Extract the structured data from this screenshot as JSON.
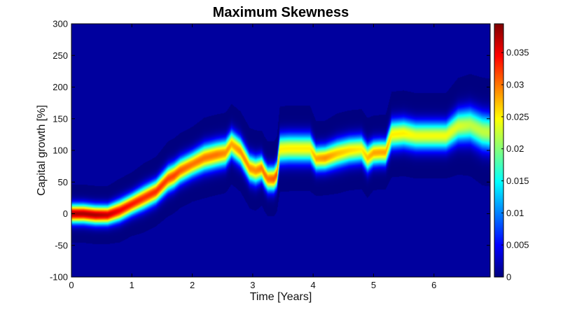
{
  "chart_data": {
    "type": "heatmap",
    "title": "Maximum Skewness",
    "xlabel": "Time [Years]",
    "ylabel": "Capital growth [%]",
    "xlim": [
      0,
      6.93
    ],
    "ylim": [
      -100,
      300
    ],
    "x_ticks": [
      0,
      1,
      2,
      3,
      4,
      5,
      6
    ],
    "y_ticks": [
      -100,
      -50,
      0,
      50,
      100,
      150,
      200,
      250,
      300
    ],
    "grid": false,
    "colormap": "jet",
    "colorbar": {
      "range": [
        0,
        0.0395
      ],
      "ticks": [
        0,
        0.005,
        0.01,
        0.015,
        0.02,
        0.025,
        0.03,
        0.035
      ],
      "tick_labels": [
        "0",
        "0.005",
        "0.01",
        "0.015",
        "0.02",
        "0.025",
        "0.03",
        "0.035"
      ]
    },
    "ridge": {
      "description": "density peak path (center of distribution) over time",
      "time": [
        0,
        0.2,
        0.4,
        0.6,
        0.8,
        1.0,
        1.2,
        1.4,
        1.6,
        1.7,
        1.8,
        2.0,
        2.2,
        2.4,
        2.55,
        2.65,
        2.8,
        2.95,
        3.05,
        3.15,
        3.2,
        3.25,
        3.35,
        3.4,
        3.45,
        3.6,
        3.8,
        3.95,
        4.05,
        4.2,
        4.4,
        4.6,
        4.8,
        4.9,
        5.0,
        5.1,
        5.2,
        5.3,
        5.5,
        5.7,
        6.0,
        6.2,
        6.4,
        6.6,
        6.8,
        6.93
      ],
      "growth": [
        0,
        0,
        -2,
        -2,
        5,
        15,
        25,
        35,
        55,
        60,
        68,
        78,
        88,
        93,
        96,
        110,
        98,
        72,
        68,
        72,
        62,
        55,
        55,
        62,
        102,
        103,
        103,
        103,
        87,
        88,
        95,
        100,
        102,
        88,
        96,
        97,
        97,
        125,
        127,
        123,
        123,
        123,
        138,
        140,
        130,
        128
      ],
      "peak_density": [
        0.039,
        0.039,
        0.039,
        0.038,
        0.036,
        0.035,
        0.034,
        0.034,
        0.033,
        0.033,
        0.032,
        0.031,
        0.031,
        0.031,
        0.03,
        0.029,
        0.03,
        0.03,
        0.03,
        0.031,
        0.031,
        0.031,
        0.032,
        0.032,
        0.026,
        0.026,
        0.026,
        0.026,
        0.029,
        0.03,
        0.028,
        0.027,
        0.026,
        0.028,
        0.029,
        0.029,
        0.029,
        0.026,
        0.026,
        0.025,
        0.025,
        0.025,
        0.024,
        0.023,
        0.023,
        0.023
      ],
      "spread": [
        10,
        10,
        10,
        10,
        11,
        11,
        12,
        12,
        13,
        13,
        13,
        13,
        14,
        14,
        14,
        14,
        14,
        14,
        14,
        13,
        13,
        13,
        13,
        13,
        15,
        15,
        15,
        15,
        13,
        13,
        14,
        14,
        14,
        14,
        13,
        13,
        13,
        15,
        15,
        15,
        15,
        15,
        17,
        18,
        19,
        19
      ]
    }
  }
}
